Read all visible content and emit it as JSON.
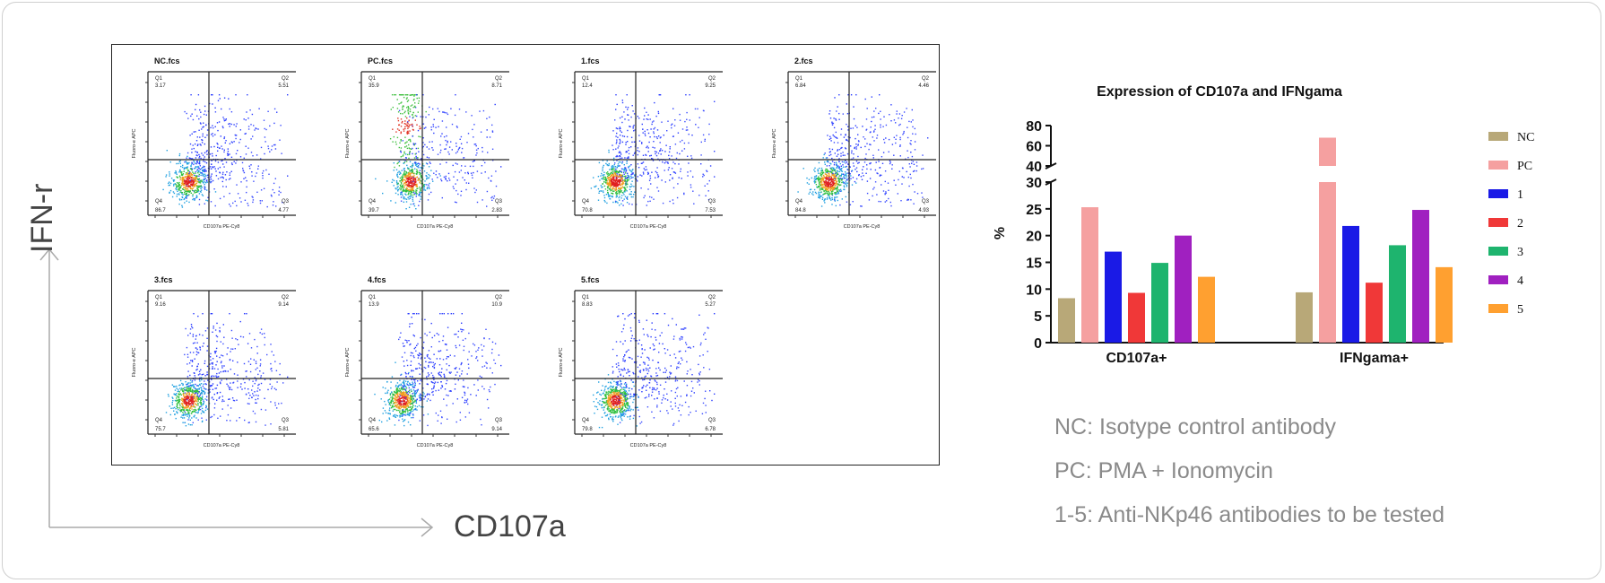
{
  "axes_arrows": {
    "y_label": "IFN-r",
    "x_label": "CD107a"
  },
  "flow_plots": [
    {
      "name": "NC.fcs",
      "q_ul": "Q1",
      "q_ul_val": "3.17",
      "q_ur": "Q2",
      "q_ur_val": "5.51",
      "q_ll": "Q4",
      "q_ll_val": "86.7",
      "q_lr": "Q3",
      "q_lr_val": "4.77",
      "y_axis": "Fluoro-e APC",
      "x_axis": "CD107a PE-Cy8"
    },
    {
      "name": "PC.fcs",
      "q_ul": "Q1",
      "q_ul_val": "35.9",
      "q_ur": "Q2",
      "q_ur_val": "8.71",
      "q_ll": "Q4",
      "q_ll_val": "39.7",
      "q_lr": "Q3",
      "q_lr_val": "2.83",
      "y_axis": "Fluoro-e APC",
      "x_axis": "CD107a PE-Cy8"
    },
    {
      "name": "1.fcs",
      "q_ul": "Q1",
      "q_ul_val": "12.4",
      "q_ur": "Q2",
      "q_ur_val": "9.25",
      "q_ll": "Q4",
      "q_ll_val": "70.8",
      "q_lr": "Q3",
      "q_lr_val": "7.53",
      "y_axis": "Fluoro-e APC",
      "x_axis": "CD107a PE-Cy8"
    },
    {
      "name": "2.fcs",
      "q_ul": "Q1",
      "q_ul_val": "6.84",
      "q_ur": "Q2",
      "q_ur_val": "4.46",
      "q_ll": "Q4",
      "q_ll_val": "84.8",
      "q_lr": "Q3",
      "q_lr_val": "4.93",
      "y_axis": "Fluoro-e APC",
      "x_axis": "CD107a PE-Cy8"
    },
    {
      "name": "3.fcs",
      "q_ul": "Q1",
      "q_ul_val": "9.16",
      "q_ur": "Q2",
      "q_ur_val": "9.14",
      "q_ll": "Q4",
      "q_ll_val": "75.7",
      "q_lr": "Q3",
      "q_lr_val": "5.81",
      "y_axis": "Fluoro-e APC",
      "x_axis": "CD107a PE-Cy8"
    },
    {
      "name": "4.fcs",
      "q_ul": "Q1",
      "q_ul_val": "13.9",
      "q_ur": "Q2",
      "q_ur_val": "10.9",
      "q_ll": "Q4",
      "q_ll_val": "65.6",
      "q_lr": "Q3",
      "q_lr_val": "9.14",
      "y_axis": "Fluoro-e APC",
      "x_axis": "CD107a PE-Cy8"
    },
    {
      "name": "5.fcs",
      "q_ul": "Q1",
      "q_ul_val": "8.83",
      "q_ur": "Q2",
      "q_ur_val": "5.27",
      "q_ll": "Q4",
      "q_ll_val": "79.8",
      "q_lr": "Q3",
      "q_lr_val": "6.78",
      "y_axis": "Fluoro-e APC",
      "x_axis": "CD107a PE-Cy8"
    }
  ],
  "legend_notes": {
    "nc": "NC: Isotype control antibody",
    "pc": "PC: PMA + Ionomycin",
    "tested": "1-5: Anti-NKp46 antibodies to be tested"
  },
  "chart_data": {
    "type": "bar",
    "title": "Expression of CD107a and IFNgama",
    "ylabel": "%",
    "xlabel": "",
    "categories": [
      "CD107a+",
      "IFNgama+"
    ],
    "axis_break": {
      "lower": [
        0,
        30
      ],
      "upper": [
        40,
        80
      ]
    },
    "yticks_lower": [
      "0",
      "5",
      "10",
      "15",
      "20",
      "25",
      "30"
    ],
    "yticks_upper": [
      "40",
      "60",
      "80"
    ],
    "series": [
      {
        "name": "NC",
        "color": "#b8a878",
        "values": [
          8.3,
          9.4
        ]
      },
      {
        "name": "PC",
        "color": "#f5a0a0",
        "values": [
          25.3,
          68
        ]
      },
      {
        "name": "1",
        "color": "#1a1ae6",
        "values": [
          17,
          21.8
        ]
      },
      {
        "name": "2",
        "color": "#f03838",
        "values": [
          9.3,
          11.2
        ]
      },
      {
        "name": "3",
        "color": "#1eb46e",
        "values": [
          14.9,
          18.2
        ]
      },
      {
        "name": "4",
        "color": "#a020c0",
        "values": [
          20,
          24.8
        ]
      },
      {
        "name": "5",
        "color": "#ffa030",
        "values": [
          12.3,
          14.1
        ]
      }
    ],
    "legend_position": "right"
  }
}
